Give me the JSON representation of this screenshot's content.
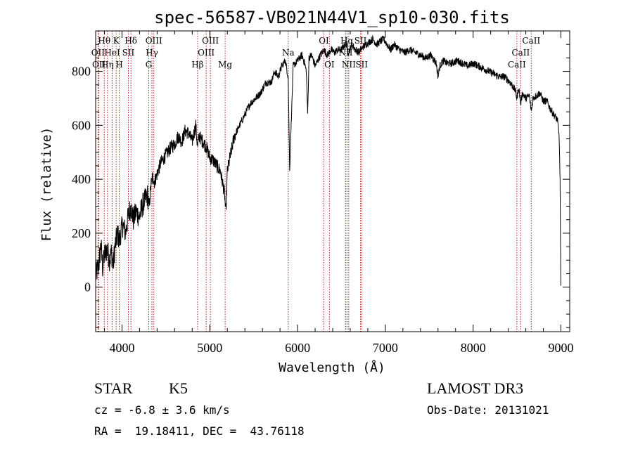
{
  "chart_data": {
    "type": "line",
    "title": "spec-56587-VB021N44V1_sp10-030.fits",
    "xlabel": "Wavelength (Å)",
    "ylabel": "Flux (relative)",
    "xlim": [
      3700,
      9100
    ],
    "ylim": [
      -165,
      950
    ],
    "x_ticks": [
      4000,
      5000,
      6000,
      7000,
      8000,
      9000
    ],
    "y_ticks": [
      0,
      200,
      400,
      600,
      800
    ],
    "grid": false,
    "series": [
      {
        "name": "flux",
        "x": [
          3700,
          3740,
          3760,
          3780,
          3800,
          3830,
          3860,
          3880,
          3900,
          3920,
          3950,
          3970,
          3990,
          4010,
          4040,
          4070,
          4100,
          4130,
          4160,
          4200,
          4230,
          4260,
          4290,
          4310,
          4330,
          4350,
          4370,
          4400,
          4440,
          4480,
          4520,
          4560,
          4600,
          4640,
          4680,
          4720,
          4760,
          4800,
          4840,
          4861,
          4880,
          4920,
          4960,
          5000,
          5040,
          5080,
          5120,
          5150,
          5170,
          5183,
          5200,
          5230,
          5280,
          5340,
          5400,
          5460,
          5520,
          5580,
          5640,
          5700,
          5740,
          5780,
          5820,
          5860,
          5893,
          5910,
          5950,
          6000,
          6050,
          6080,
          6100,
          6115,
          6130,
          6160,
          6200,
          6260,
          6300,
          6340,
          6380,
          6420,
          6460,
          6500,
          6540,
          6563,
          6580,
          6620,
          6660,
          6700,
          6740,
          6780,
          6820,
          6860,
          6900,
          6940,
          6980,
          7020,
          7060,
          7100,
          7160,
          7220,
          7280,
          7340,
          7400,
          7460,
          7520,
          7580,
          7600,
          7620,
          7660,
          7700,
          7760,
          7820,
          7880,
          7940,
          8000,
          8060,
          8120,
          8180,
          8240,
          8300,
          8360,
          8420,
          8480,
          8498,
          8520,
          8542,
          8560,
          8600,
          8640,
          8662,
          8680,
          8720,
          8760,
          8800,
          8840,
          8880,
          8920,
          8960,
          8980,
          8990,
          8995,
          9000
        ],
        "values": [
          40,
          90,
          160,
          70,
          120,
          140,
          100,
          130,
          80,
          150,
          200,
          170,
          210,
          230,
          200,
          260,
          300,
          250,
          280,
          260,
          300,
          320,
          340,
          300,
          380,
          410,
          390,
          420,
          460,
          480,
          500,
          520,
          530,
          560,
          540,
          580,
          570,
          540,
          600,
          520,
          560,
          540,
          520,
          480,
          470,
          450,
          430,
          380,
          340,
          270,
          430,
          480,
          560,
          600,
          640,
          680,
          700,
          720,
          760,
          760,
          800,
          780,
          820,
          840,
          780,
          440,
          820,
          840,
          860,
          830,
          800,
          640,
          850,
          860,
          820,
          860,
          880,
          860,
          880,
          870,
          880,
          880,
          900,
          900,
          870,
          900,
          880,
          870,
          890,
          900,
          910,
          920,
          900,
          910,
          920,
          900,
          880,
          900,
          880,
          870,
          880,
          870,
          860,
          850,
          860,
          830,
          780,
          820,
          840,
          830,
          830,
          840,
          830,
          820,
          830,
          820,
          810,
          800,
          790,
          780,
          780,
          760,
          730,
          700,
          740,
          680,
          720,
          700,
          710,
          650,
          700,
          710,
          720,
          690,
          690,
          660,
          640,
          620,
          560,
          400,
          180,
          0
        ]
      }
    ],
    "annotations": [
      {
        "label": "Hθ",
        "x": 3798,
        "row": 1
      },
      {
        "label": "OII",
        "x": 3727,
        "row": 2
      },
      {
        "label": "OII",
        "x": 3737,
        "row": 3
      },
      {
        "label": "K",
        "x": 3934,
        "row": 1
      },
      {
        "label": "HeI",
        "x": 3889,
        "row": 2
      },
      {
        "label": "Hη",
        "x": 3835,
        "row": 3
      },
      {
        "label": "SII",
        "x": 4072,
        "row": 2
      },
      {
        "label": "H",
        "x": 3969,
        "row": 3
      },
      {
        "label": "Hδ",
        "x": 4102,
        "row": 1
      },
      {
        "label": "OIII",
        "x": 4363,
        "row": 1
      },
      {
        "label": "Hγ",
        "x": 4341,
        "row": 2
      },
      {
        "label": "G",
        "x": 4305,
        "row": 3
      },
      {
        "label": "OIII",
        "x": 5007,
        "row": 1
      },
      {
        "label": "OIII",
        "x": 4959,
        "row": 2
      },
      {
        "label": "Hβ",
        "x": 4861,
        "row": 3
      },
      {
        "label": "Mg",
        "x": 5175,
        "row": 3
      },
      {
        "label": "Na",
        "x": 5894,
        "row": 2
      },
      {
        "label": "OI",
        "x": 6300,
        "row": 1
      },
      {
        "label": "OI",
        "x": 6363,
        "row": 3
      },
      {
        "label": "Hα",
        "x": 6563,
        "row": 1
      },
      {
        "label": "NII",
        "x": 6548,
        "row": 2
      },
      {
        "label": "SII",
        "x": 6717,
        "row": 1
      },
      {
        "label": "NII",
        "x": 6583,
        "row": 3
      },
      {
        "label": "SII",
        "x": 6731,
        "row": 3
      },
      {
        "label": "CaII",
        "x": 8662,
        "row": 1
      },
      {
        "label": "CaII",
        "x": 8542,
        "row": 2
      },
      {
        "label": "CaII",
        "x": 8498,
        "row": 3
      }
    ],
    "line_markers": [
      3727,
      3737,
      3798,
      3835,
      3889,
      3934,
      3969,
      4072,
      4102,
      4305,
      4341,
      4363,
      4861,
      4959,
      5007,
      5175,
      5894,
      6300,
      6363,
      6548,
      6563,
      6583,
      6717,
      6731,
      8498,
      8542,
      8662
    ]
  },
  "info": {
    "object_type": "STAR",
    "subclass": "K5",
    "survey": "LAMOST DR3",
    "cz": "cz = -6.8 ± 3.6 km/s",
    "obs_date": "Obs-Date: 20131021",
    "coords": "RA =  19.18411, DEC =  43.76118"
  },
  "colors": {
    "line": "#000000",
    "marker": "#b22222",
    "axis": "#000000"
  }
}
